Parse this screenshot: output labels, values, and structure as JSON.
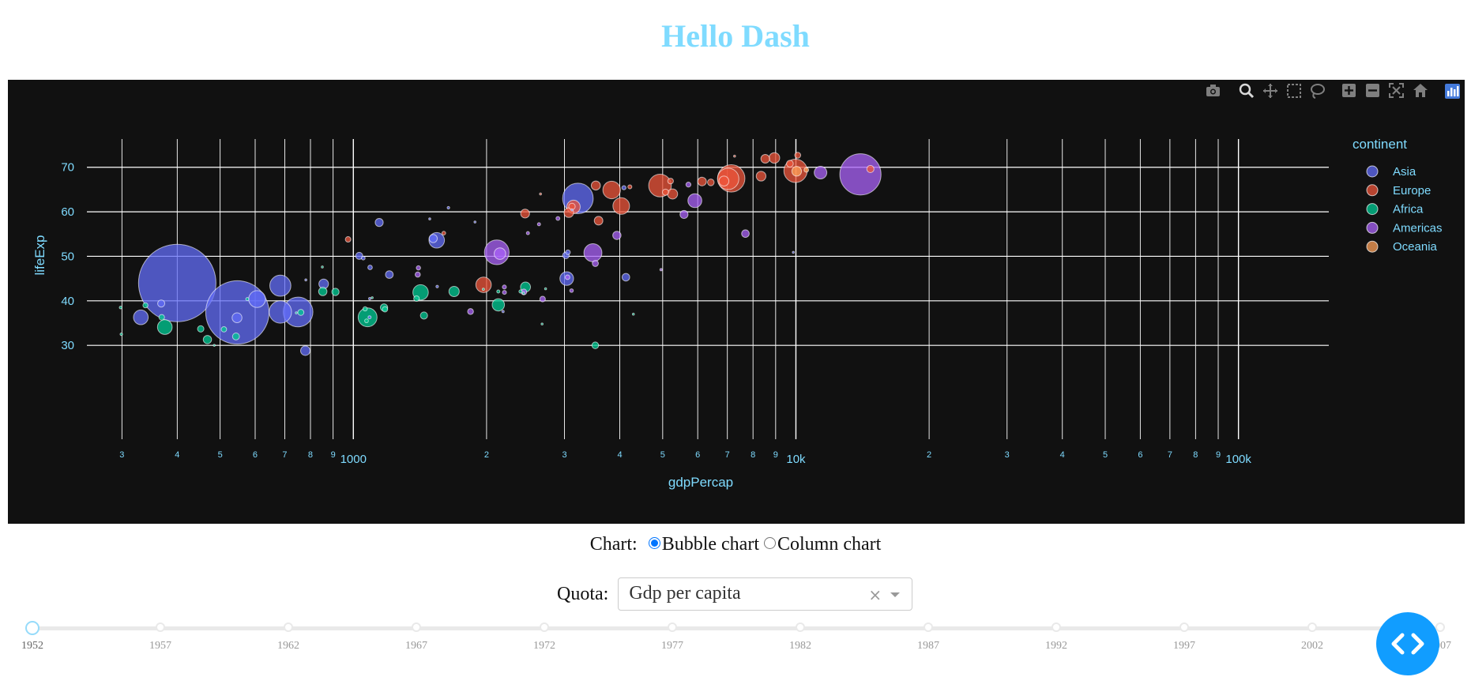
{
  "title": "Hello Dash",
  "modebar": {
    "icons": [
      "camera-icon",
      "zoom-icon",
      "pan-icon",
      "box-select-icon",
      "lasso-select-icon",
      "zoom-in-icon",
      "zoom-out-icon",
      "autoscale-icon",
      "reset-axes-icon",
      "plotly-logo-icon"
    ],
    "color": "#7f7f7f"
  },
  "chart_data": {
    "type": "scatter",
    "subtype": "bubble",
    "xlabel": "gdpPercap",
    "ylabel": "lifeExp",
    "x_scale": "log",
    "xlim": [
      250,
      160000
    ],
    "ylim": [
      24,
      79
    ],
    "x_ticks_major": [
      {
        "value": 1000,
        "label": "1000"
      },
      {
        "value": 10000,
        "label": "10k"
      },
      {
        "value": 100000,
        "label": "100k"
      }
    ],
    "x_ticks_minor": [
      {
        "value": 300,
        "label": "3"
      },
      {
        "value": 400,
        "label": "4"
      },
      {
        "value": 500,
        "label": "5"
      },
      {
        "value": 600,
        "label": "6"
      },
      {
        "value": 700,
        "label": "7"
      },
      {
        "value": 800,
        "label": "8"
      },
      {
        "value": 900,
        "label": "9"
      },
      {
        "value": 2000,
        "label": "2"
      },
      {
        "value": 3000,
        "label": "3"
      },
      {
        "value": 4000,
        "label": "4"
      },
      {
        "value": 5000,
        "label": "5"
      },
      {
        "value": 6000,
        "label": "6"
      },
      {
        "value": 7000,
        "label": "7"
      },
      {
        "value": 8000,
        "label": "8"
      },
      {
        "value": 9000,
        "label": "9"
      },
      {
        "value": 20000,
        "label": "2"
      },
      {
        "value": 30000,
        "label": "3"
      },
      {
        "value": 40000,
        "label": "4"
      },
      {
        "value": 50000,
        "label": "5"
      },
      {
        "value": 60000,
        "label": "6"
      },
      {
        "value": 70000,
        "label": "7"
      },
      {
        "value": 80000,
        "label": "8"
      },
      {
        "value": 90000,
        "label": "9"
      }
    ],
    "y_ticks": [
      30,
      40,
      50,
      60,
      70
    ],
    "grid": true,
    "legend": {
      "title": "continent",
      "position": "right"
    },
    "series": [
      {
        "name": "Asia",
        "color": "#636efa",
        "points": [
          [
            779,
            28.8,
            8.4
          ],
          [
            9867,
            50.9,
            0.1
          ],
          [
            684,
            37.5,
            46.5
          ],
          [
            368,
            39.4,
            4.7
          ],
          [
            400,
            44.0,
            556
          ],
          [
            3054,
            50.9,
            2.1
          ],
          [
            547,
            37.4,
            372
          ],
          [
            750,
            37.5,
            82.1
          ],
          [
            3035,
            45.0,
            17.3
          ],
          [
            4129,
            45.3,
            5.4
          ],
          [
            4087,
            65.4,
            1.6
          ],
          [
            3217,
            63.0,
            86.5
          ],
          [
            1547,
            43.2,
            0.6
          ],
          [
            1089,
            40.5,
            0.5
          ],
          [
            1031,
            50.1,
            4.7
          ],
          [
            1088,
            36.3,
            0.9
          ],
          [
            1488,
            58.4,
            0.1
          ],
          [
            1091,
            47.5,
            1.9
          ],
          [
            1640,
            60.9,
            0.6
          ],
          [
            331,
            36.3,
            20.1
          ],
          [
            546,
            36.2,
            9.0
          ],
          [
            684,
            43.4,
            41.3
          ],
          [
            2179,
            37.6,
            0.5
          ],
          [
            1144,
            57.6,
            6.0
          ],
          [
            3119,
            60.4,
            0.3
          ],
          [
            1206,
            45.9,
            5.5
          ],
          [
            1543,
            53.6,
            22.4
          ],
          [
            1515,
            54.0,
            6.3
          ],
          [
            606,
            40.4,
            26.2
          ],
          [
            1883,
            57.7,
            0.1
          ],
          [
            3022,
            50.2,
            4.0
          ],
          [
            1053,
            49.6,
            1.3
          ],
          [
            857,
            43.8,
            8.6
          ],
          [
            781,
            44.7,
            0.2
          ]
        ]
      },
      {
        "name": "Europe",
        "color": "#EF553B",
        "points": [
          [
            1601,
            55.2,
            1.3
          ],
          [
            6137,
            66.8,
            6.9
          ],
          [
            8343,
            68.0,
            8.7
          ],
          [
            973,
            53.8,
            2.8
          ],
          [
            2444,
            59.6,
            7.3
          ],
          [
            3119,
            61.2,
            3.9
          ],
          [
            6876,
            66.9,
            9.1
          ],
          [
            9692,
            70.8,
            4.3
          ],
          [
            6424,
            66.6,
            4.1
          ],
          [
            7030,
            67.4,
            42.5
          ],
          [
            7144,
            67.5,
            69.1
          ],
          [
            3531,
            65.9,
            7.7
          ],
          [
            5264,
            64.0,
            9.5
          ],
          [
            7268,
            72.5,
            0.1
          ],
          [
            5210,
            66.9,
            3.0
          ],
          [
            4931,
            65.9,
            47.7
          ],
          [
            2648,
            64.0,
            0.4
          ],
          [
            8942,
            72.1,
            10.4
          ],
          [
            10095,
            72.7,
            3.3
          ],
          [
            4030,
            61.3,
            25.7
          ],
          [
            3068,
            59.8,
            8.5
          ],
          [
            3144,
            61.1,
            16.6
          ],
          [
            3582,
            58.0,
            6.9
          ],
          [
            5074,
            64.4,
            3.6
          ],
          [
            4215,
            65.6,
            1.5
          ],
          [
            3834,
            64.9,
            28.6
          ],
          [
            8527,
            71.9,
            7.1
          ],
          [
            14734,
            69.6,
            4.8
          ],
          [
            1969,
            43.6,
            22.2
          ],
          [
            9980,
            69.2,
            50.4
          ]
        ]
      },
      {
        "name": "Africa",
        "color": "#00CC96",
        "points": [
          [
            2449,
            43.1,
            9.3
          ],
          [
            3521,
            30.0,
            4.2
          ],
          [
            1063,
            38.2,
            1.7
          ],
          [
            851,
            47.6,
            0.4
          ],
          [
            543,
            32.0,
            4.5
          ],
          [
            339,
            39.0,
            2.4
          ],
          [
            1173,
            38.5,
            5.0
          ],
          [
            1071,
            35.5,
            1.3
          ],
          [
            1179,
            38.1,
            2.7
          ],
          [
            1103,
            40.7,
            0.2
          ],
          [
            2126,
            39.1,
            14.1
          ],
          [
            2126,
            42.1,
            0.9
          ],
          [
            1389,
            40.5,
            2.9
          ],
          [
            2670,
            34.8,
            0.1
          ],
          [
            1419,
            41.9,
            22.2
          ],
          [
            375,
            34.1,
            20.0
          ],
          [
            4293,
            37.0,
            0.2
          ],
          [
            485,
            30.0,
            0.3
          ],
          [
            911,
            42.0,
            5.0
          ],
          [
            510,
            33.6,
            2.7
          ],
          [
            299,
            32.5,
            0.6
          ],
          [
            853,
            42.1,
            6.5
          ],
          [
            298,
            38.5,
            0.7
          ],
          [
            576,
            40.4,
            0.9
          ],
          [
            2387,
            42.1,
            1.0
          ],
          [
            1444,
            36.7,
            4.8
          ],
          [
            369,
            36.3,
            2.9
          ],
          [
            452,
            33.7,
            3.8
          ],
          [
            743,
            37.3,
            0.1
          ],
          [
            1967,
            42.6,
            0.5
          ],
          [
            1689,
            42.1,
            9.9
          ],
          [
            468,
            31.3,
            6.4
          ],
          [
            2424,
            41.7,
            0.5
          ],
          [
            761,
            37.4,
            3.4
          ],
          [
            1077,
            36.3,
            33.1
          ],
          [
            2719,
            42.7,
            0.2
          ]
        ]
      },
      {
        "name": "Americas",
        "color": "#AB63FA",
        "points": [
          [
            5911,
            62.5,
            17.9
          ],
          [
            2677,
            40.4,
            2.9
          ],
          [
            2109,
            50.9,
            56.6
          ],
          [
            11367,
            68.8,
            14.8
          ],
          [
            3940,
            54.7,
            6.4
          ],
          [
            2144,
            50.6,
            12.4
          ],
          [
            2627,
            57.2,
            0.9
          ],
          [
            5587,
            59.4,
            6.0
          ],
          [
            1398,
            45.9,
            2.5
          ],
          [
            3522,
            48.4,
            3.5
          ],
          [
            3048,
            45.3,
            2.0
          ],
          [
            2428,
            42.0,
            3.1
          ],
          [
            2194,
            43.1,
            1.5
          ],
          [
            1840,
            37.6,
            3.2
          ],
          [
            2195,
            41.9,
            1.5
          ],
          [
            2899,
            58.5,
            1.4
          ],
          [
            3478,
            50.8,
            30.1
          ],
          [
            3112,
            42.3,
            1.2
          ],
          [
            2480,
            55.2,
            0.9
          ],
          [
            4958,
            47.0,
            0.5
          ],
          [
            1403,
            47.4,
            1.7
          ],
          [
            13990,
            68.4,
            157.6
          ],
          [
            5716,
            66.1,
            2.3
          ],
          [
            7690,
            55.1,
            5.4
          ]
        ]
      },
      {
        "name": "Oceania",
        "color": "#FFA15A",
        "points": [
          [
            10040,
            69.1,
            8.7
          ],
          [
            10557,
            69.4,
            1.99
          ]
        ]
      }
    ]
  },
  "controls": {
    "chart_label": "Chart:",
    "options": [
      "Bubble chart",
      "Column chart"
    ],
    "selected": "Bubble chart",
    "quota_label": "Quota:",
    "quota_value": "Gdp per capita",
    "quota_clear": "×"
  },
  "slider": {
    "marks": [
      "1952",
      "1957",
      "1962",
      "1967",
      "1972",
      "1977",
      "1982",
      "1987",
      "1992",
      "1997",
      "2002",
      "2007"
    ],
    "value": "1952"
  }
}
